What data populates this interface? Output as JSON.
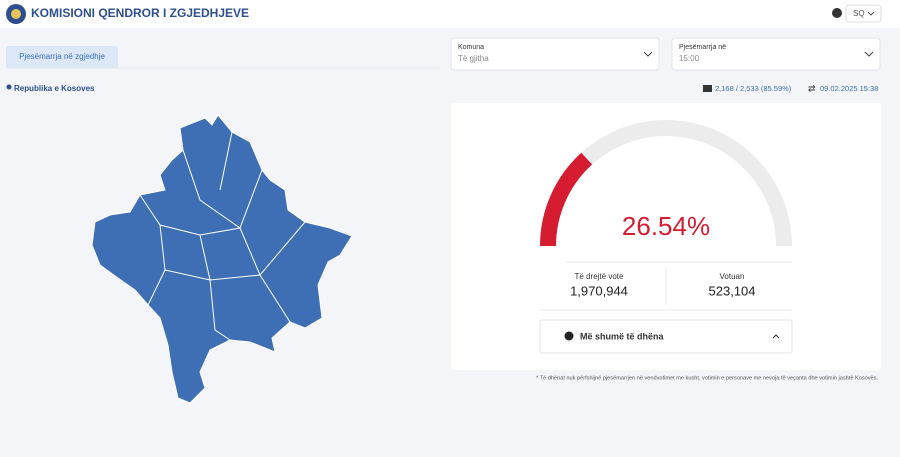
{
  "header": {
    "title": "KOMISIONI QENDROR I ZGJEDHJEVE",
    "language": "SQ"
  },
  "tab": "Pjesëmarrja në zgjedhje",
  "filters": [
    {
      "label": "Komuna",
      "value": "Të gjitha"
    },
    {
      "label": "Pjesëmarrja në",
      "value": "15:00"
    }
  ],
  "location": "Republika e Kosoves",
  "stations": "2,168 / 2,533 (85.59%)",
  "updated": "09.02.2025 15:38",
  "gauge": {
    "value": 26.54,
    "label": "26.54%"
  },
  "stats": [
    {
      "label": "Të drejtë vote",
      "value": "1,970,944"
    },
    {
      "label": "Votuan",
      "value": "523,104"
    }
  ],
  "more_button": "Më shumë të dhëna",
  "footnote": "* Të dhënat nuk përfshijnë pjesëmarrjen në vendvotimet me kusht, votimin e personave me nevoja të veçanta dhe votimin jashtë Kosovës."
}
